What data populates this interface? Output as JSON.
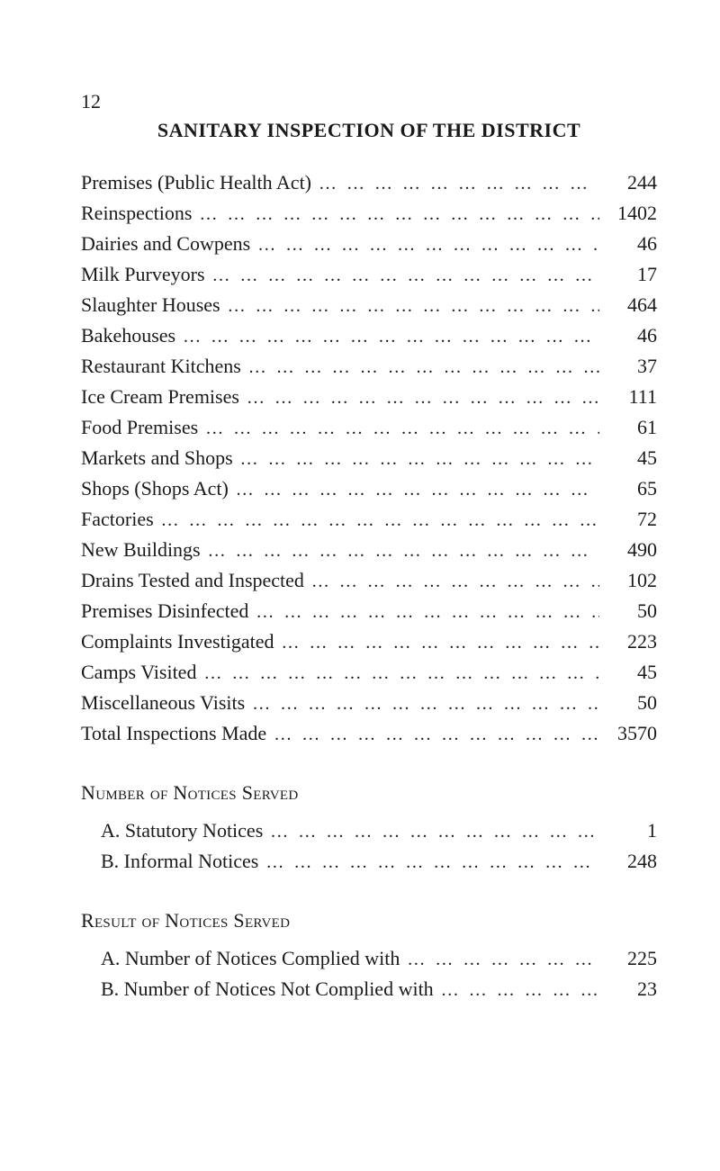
{
  "page_number": "12",
  "title": "SANITARY INSPECTION OF THE DISTRICT",
  "leader_text": "…   …   …   …   …   …   …   …   …   …   …   …   …   …   …   …",
  "inspections": [
    {
      "label": "Premises (Public Health Act)",
      "value": "244"
    },
    {
      "label": "Reinspections",
      "value": "1402"
    },
    {
      "label": "Dairies and Cowpens",
      "value": "46"
    },
    {
      "label": "Milk Purveyors",
      "value": "17"
    },
    {
      "label": "Slaughter Houses",
      "value": "464"
    },
    {
      "label": "Bakehouses",
      "value": "46"
    },
    {
      "label": "Restaurant Kitchens",
      "value": "37"
    },
    {
      "label": "Ice Cream Premises",
      "value": "111"
    },
    {
      "label": "Food Premises",
      "value": "61"
    },
    {
      "label": "Markets and Shops",
      "value": "45"
    },
    {
      "label": "Shops (Shops Act)",
      "value": "65"
    },
    {
      "label": "Factories",
      "value": "72"
    },
    {
      "label": "New Buildings",
      "value": "490"
    },
    {
      "label": "Drains Tested and Inspected",
      "value": "102"
    },
    {
      "label": "Premises Disinfected",
      "value": "50"
    },
    {
      "label": "Complaints Investigated",
      "value": "223"
    },
    {
      "label": "Camps Visited",
      "value": "45"
    },
    {
      "label": "Miscellaneous Visits",
      "value": "50"
    },
    {
      "label": "Total Inspections Made",
      "value": "3570"
    }
  ],
  "notices_served_heading": "Number of Notices Served",
  "notices_served": [
    {
      "label": "A. Statutory Notices",
      "value": "1"
    },
    {
      "label": "B. Informal Notices",
      "value": "248"
    }
  ],
  "notices_result_heading": "Result of Notices Served",
  "notices_result": [
    {
      "label": "A. Number of Notices Complied with",
      "value": "225"
    },
    {
      "label": "B. Number of Notices Not Complied with",
      "value": "23"
    }
  ]
}
